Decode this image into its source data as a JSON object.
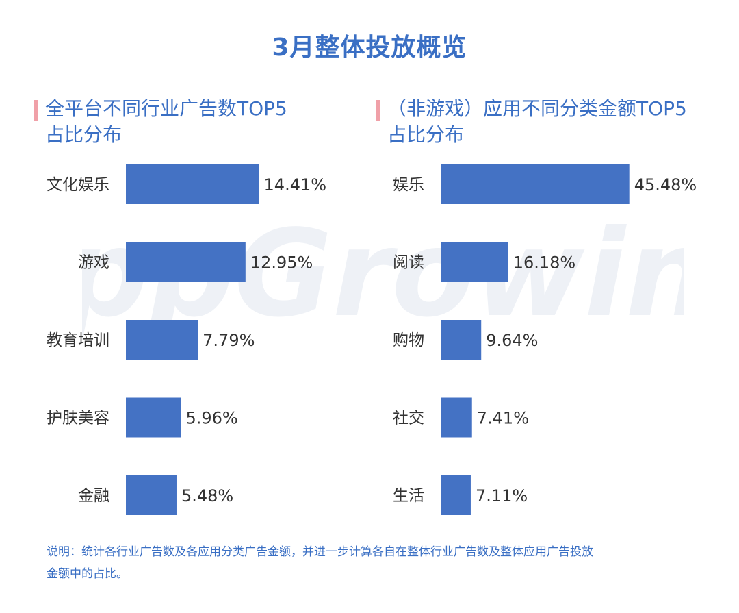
{
  "title": "3月整体投放概览",
  "watermark": "AppGrowing",
  "colors": {
    "bar": "#4472c4",
    "title": "#3a6fc4",
    "accent": "#f0a0a8",
    "text": "#333333"
  },
  "chart_data": [
    {
      "type": "bar",
      "orientation": "horizontal",
      "title": "全平台不同行业广告数TOP5占比分布",
      "title_lines": [
        "全平台不同行业广告数TOP5",
        "占比分布"
      ],
      "categories": [
        "文化娱乐",
        "游戏",
        "教育培训",
        "护肤美容",
        "金融"
      ],
      "values": [
        14.41,
        12.95,
        7.79,
        5.96,
        5.48
      ],
      "value_labels": [
        "14.41%",
        "12.95%",
        "7.79%",
        "5.96%",
        "5.48%"
      ],
      "unit": "%",
      "xlim": [
        0,
        20
      ],
      "grid": false,
      "legend": "none"
    },
    {
      "type": "bar",
      "orientation": "horizontal",
      "title": "（非游戏）应用不同分类金额TOP5占比分布",
      "title_lines": [
        "（非游戏）应用不同分类金额TOP5",
        "占比分布"
      ],
      "categories": [
        "娱乐",
        "阅读",
        "购物",
        "社交",
        "生活"
      ],
      "values": [
        45.48,
        16.18,
        9.64,
        7.41,
        7.11
      ],
      "value_labels": [
        "45.48%",
        "16.18%",
        "9.64%",
        "7.41%",
        "7.11%"
      ],
      "unit": "%",
      "xlim": [
        0,
        60
      ],
      "grid": false,
      "legend": "none"
    }
  ],
  "note_lines": [
    "说明：统计各行业广告数及各应用分类广告金额，并进一步计算各自在整体行业广告数及整体应用广告投放",
    "金额中的占比。"
  ]
}
